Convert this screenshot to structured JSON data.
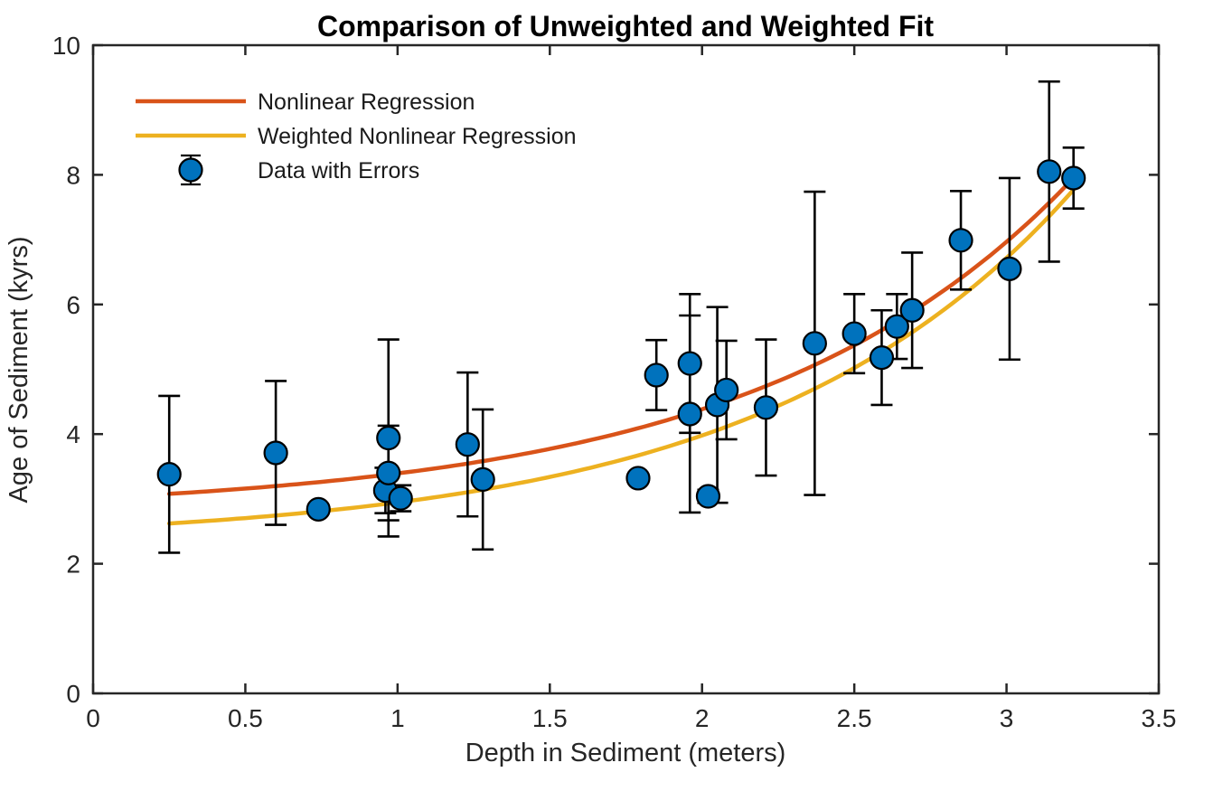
{
  "chart_data": {
    "type": "scatter",
    "title": "Comparison of Unweighted and Weighted Fit",
    "xlabel": "Depth in Sediment (meters)",
    "ylabel": "Age of Sediment (kyrs)",
    "xlim": [
      0,
      3.5
    ],
    "ylim": [
      0,
      10
    ],
    "xtick_values": [
      0,
      0.5,
      1,
      1.5,
      2,
      2.5,
      3,
      3.5
    ],
    "xtick_labels": [
      "0",
      "0.5",
      "1",
      "1.5",
      "2",
      "2.5",
      "3",
      "3.5"
    ],
    "ytick_values": [
      0,
      2,
      4,
      6,
      8,
      10
    ],
    "ytick_labels": [
      "0",
      "2",
      "4",
      "6",
      "8",
      "10"
    ],
    "grid": false,
    "box": true,
    "legend_position": "northwest",
    "legend_border": false,
    "axis_color": "#262626",
    "errorbar_color": "#000000",
    "series": [
      {
        "name": "Nonlinear Regression",
        "type": "line",
        "color": "#D95319",
        "line_width": 4.5,
        "model": "y = a + b*exp(c*x)",
        "params": {
          "a": 2.78,
          "b": 0.235,
          "c": 0.96
        },
        "x_start": 0.25,
        "x_end": 3.22
      },
      {
        "name": "Weighted Nonlinear Regression",
        "type": "line",
        "color": "#EDB120",
        "line_width": 4.5,
        "model": "y = a + b*exp(c*x)",
        "params": {
          "a": 2.32,
          "b": 0.236,
          "c": 0.975
        },
        "x_start": 0.25,
        "x_end": 3.22
      },
      {
        "name": "Data with Errors",
        "type": "errorbar",
        "marker": "circle",
        "marker_color": "#0072BD",
        "marker_edge_color": "#000000",
        "marker_radius": 12.5,
        "points": [
          {
            "x": 0.25,
            "y": 3.38,
            "err": 1.21
          },
          {
            "x": 0.6,
            "y": 3.71,
            "err": 1.11
          },
          {
            "x": 0.74,
            "y": 2.84,
            "err": 0.07
          },
          {
            "x": 0.96,
            "y": 3.13,
            "err": 0.35
          },
          {
            "x": 0.97,
            "y": 3.94,
            "err": 1.52
          },
          {
            "x": 0.97,
            "y": 3.4,
            "err": 0.73
          },
          {
            "x": 1.01,
            "y": 3.01,
            "err": 0.2
          },
          {
            "x": 1.23,
            "y": 3.84,
            "err": 1.11
          },
          {
            "x": 1.28,
            "y": 3.3,
            "err": 1.08
          },
          {
            "x": 1.79,
            "y": 3.32,
            "err": 0.06
          },
          {
            "x": 1.85,
            "y": 4.91,
            "err": 0.54
          },
          {
            "x": 1.96,
            "y": 5.09,
            "err": 1.07
          },
          {
            "x": 1.96,
            "y": 4.31,
            "err": 1.52
          },
          {
            "x": 2.02,
            "y": 3.04,
            "err": 0.1
          },
          {
            "x": 2.05,
            "y": 4.45,
            "err": 1.51
          },
          {
            "x": 2.08,
            "y": 4.68,
            "err": 0.76
          },
          {
            "x": 2.21,
            "y": 4.41,
            "err": 1.05
          },
          {
            "x": 2.37,
            "y": 5.4,
            "err": 2.34
          },
          {
            "x": 2.5,
            "y": 5.55,
            "err": 0.61
          },
          {
            "x": 2.59,
            "y": 5.18,
            "err": 0.73
          },
          {
            "x": 2.64,
            "y": 5.66,
            "err": 0.5
          },
          {
            "x": 2.69,
            "y": 5.91,
            "err": 0.89
          },
          {
            "x": 2.85,
            "y": 6.99,
            "err": 0.76
          },
          {
            "x": 3.01,
            "y": 6.55,
            "err": 1.4
          },
          {
            "x": 3.14,
            "y": 8.05,
            "err": 1.39
          },
          {
            "x": 3.22,
            "y": 7.95,
            "err": 0.47
          }
        ]
      }
    ]
  }
}
